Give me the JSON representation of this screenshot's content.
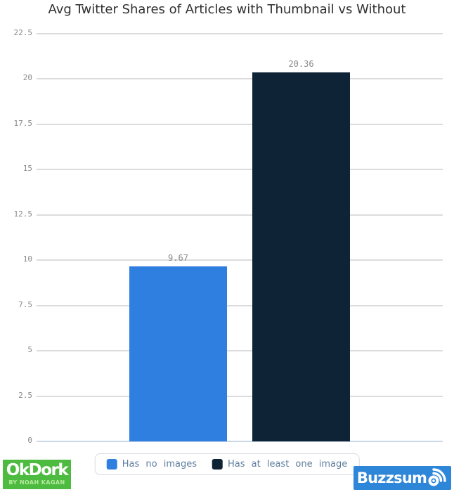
{
  "title": "Avg Twitter Shares of Articles with Thumbnail vs Without",
  "chart_data": {
    "type": "bar",
    "title": "Avg Twitter Shares of Articles with Thumbnail vs Without",
    "categories": [
      "Has no images",
      "Has at least one image"
    ],
    "values": [
      9.67,
      20.36
    ],
    "value_labels": [
      "9.67",
      "20.36"
    ],
    "bar_colors": [
      "#2f7fe1",
      "#0f2337"
    ],
    "xlabel": "",
    "ylabel": "",
    "ylim": [
      0,
      22.5
    ],
    "yticks": [
      22.5,
      20,
      17.5,
      15,
      12.5,
      10,
      7.5,
      5,
      2.5,
      0
    ],
    "ytick_labels": [
      "22.5",
      "20",
      "17.5",
      "15",
      "12.5",
      "10",
      "7.5",
      "5",
      "2.5",
      "0"
    ],
    "grid": true,
    "legend_position": "bottom"
  },
  "legend": {
    "items": [
      {
        "label": "Has no images",
        "color": "#2f7fe1"
      },
      {
        "label": "Has at least one image",
        "color": "#0f2337"
      }
    ]
  },
  "branding": {
    "okdork": {
      "name": "OkDork",
      "tagline": "BY NOAH KAGAN",
      "bg_color": "#4cbb3f"
    },
    "buzzsumo": {
      "name": "Buzzsumo",
      "text_before_icon": "Buzzsum",
      "bg_color": "#2e86d8"
    }
  },
  "colors": {
    "grid_line": "#dcdcdc",
    "zero_line": "#c9d7e8",
    "tick_label": "#8a8a8a",
    "value_label": "#8a8a8a",
    "legend_text": "#5f7e9e",
    "legend_border": "#d5dbe2",
    "title_text": "#2f2f2f"
  }
}
